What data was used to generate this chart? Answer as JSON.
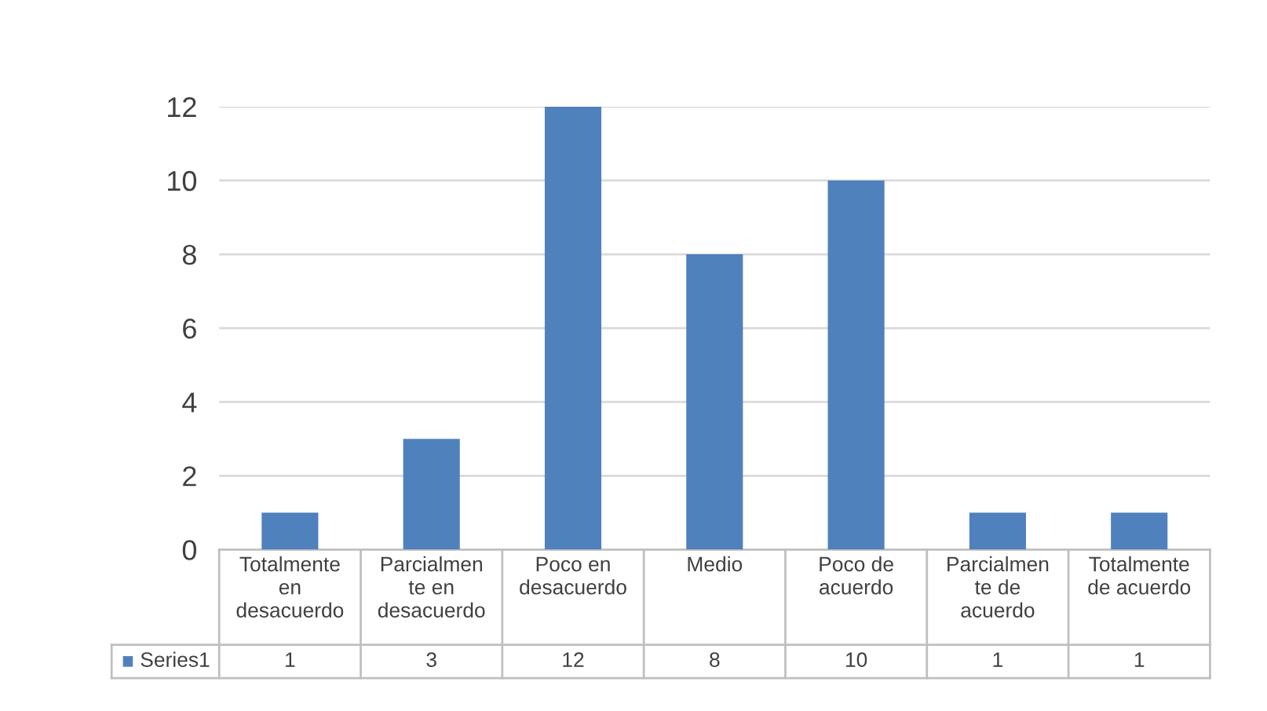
{
  "chart_data": {
    "type": "bar",
    "categories": [
      "Totalmente en desacuerdo",
      "Parcialmente en desacuerdo",
      "Poco en desacuerdo",
      "Medio",
      "Poco de acuerdo",
      "Parcialmente de acuerdo",
      "Totalmente de acuerdo"
    ],
    "series": [
      {
        "name": "Series1",
        "color": "#4f81bd",
        "values": [
          1,
          3,
          12,
          8,
          10,
          1,
          1
        ]
      }
    ],
    "ylim": [
      0,
      12
    ],
    "yticks": [
      0,
      2,
      4,
      6,
      8,
      10,
      12
    ],
    "grid": "y",
    "data_labels": true,
    "legend": "bottom"
  }
}
